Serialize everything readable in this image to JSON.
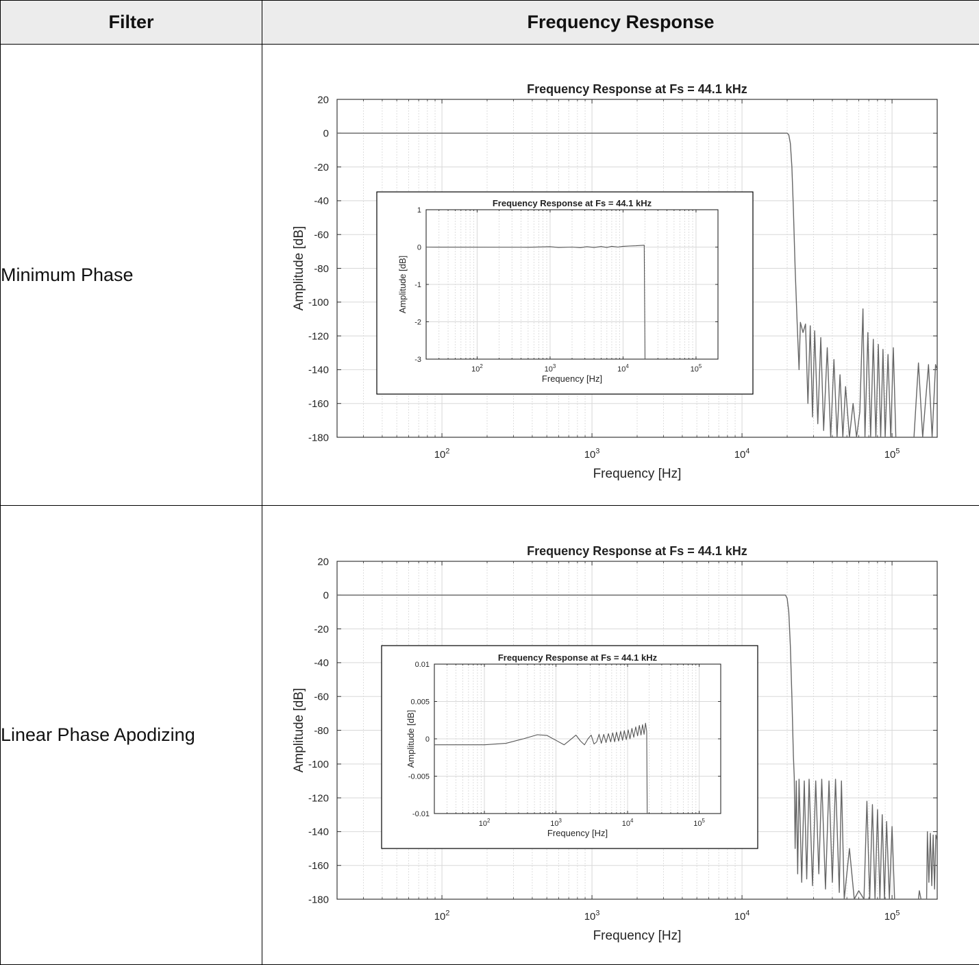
{
  "table": {
    "headers": [
      "Filter",
      "Frequency Response"
    ],
    "rows": [
      {
        "filter": "Minimum Phase"
      },
      {
        "filter": "Linear Phase Apodizing"
      }
    ]
  },
  "chart_data": [
    {
      "type": "line",
      "panel": "Minimum Phase main plot",
      "title": "Frequency Response at Fs = 44.1 kHz",
      "xlabel": "Frequency [Hz]",
      "ylabel": "Amplitude [dB]",
      "xscale": "log",
      "xlim": [
        20,
        200000
      ],
      "ylim": [
        -180,
        20
      ],
      "xticks": [
        100,
        1000,
        10000,
        100000
      ],
      "xtick_labels": [
        {
          "base": "10",
          "exp": "2"
        },
        {
          "base": "10",
          "exp": "3"
        },
        {
          "base": "10",
          "exp": "4"
        },
        {
          "base": "10",
          "exp": "5"
        }
      ],
      "yticks": [
        20,
        0,
        -20,
        -40,
        -60,
        -80,
        -100,
        -120,
        -140,
        -160,
        -180
      ],
      "grid": true,
      "color": "#666666",
      "series": [
        {
          "points": [
            [
              20,
              0
            ],
            [
              20000,
              0
            ],
            [
              20500,
              -1
            ],
            [
              21000,
              -6
            ],
            [
              21500,
              -20
            ],
            [
              22000,
              -45
            ],
            [
              22600,
              -80
            ],
            [
              23300,
              -112
            ],
            [
              24000,
              -140
            ],
            [
              24500,
              -112
            ],
            [
              25500,
              -118
            ],
            [
              26500,
              -113
            ],
            [
              27500,
              -160
            ],
            [
              28500,
              -114
            ],
            [
              29500,
              -168
            ],
            [
              30500,
              -117
            ],
            [
              32000,
              -172
            ],
            [
              33500,
              -121
            ],
            [
              35000,
              -176
            ],
            [
              37000,
              -127
            ],
            [
              39000,
              -180
            ],
            [
              41000,
              -134
            ],
            [
              43000,
              -180
            ],
            [
              45000,
              -143
            ],
            [
              47000,
              -180
            ],
            [
              49000,
              -150
            ],
            [
              52000,
              -180
            ],
            [
              55000,
              -160
            ],
            [
              58000,
              -180
            ],
            [
              61000,
              -165
            ],
            [
              64000,
              -104
            ],
            [
              66000,
              -180
            ],
            [
              69000,
              -118
            ],
            [
              72000,
              -180
            ],
            [
              75000,
              -122
            ],
            [
              78000,
              -180
            ],
            [
              81000,
              -125
            ],
            [
              84000,
              -180
            ],
            [
              87000,
              -128
            ],
            [
              90000,
              -180
            ],
            [
              94000,
              -131
            ],
            [
              98000,
              -180
            ],
            [
              102000,
              -127
            ],
            [
              106000,
              -180
            ],
            [
              140000,
              -180
            ],
            [
              150000,
              -136
            ],
            [
              160000,
              -180
            ],
            [
              175000,
              -137
            ],
            [
              185000,
              -180
            ],
            [
              195000,
              -137
            ],
            [
              200000,
              -140
            ]
          ]
        }
      ]
    },
    {
      "type": "line",
      "panel": "Minimum Phase inset (zoom)",
      "title": "Frequency Response at Fs = 44.1 kHz",
      "xlabel": "Frequency [Hz]",
      "ylabel": "Amplitude [dB]",
      "xscale": "log",
      "xlim": [
        20,
        200000
      ],
      "ylim": [
        -3,
        1
      ],
      "xticks": [
        100,
        1000,
        10000,
        100000
      ],
      "xtick_labels": [
        {
          "base": "10",
          "exp": "2"
        },
        {
          "base": "10",
          "exp": "3"
        },
        {
          "base": "10",
          "exp": "4"
        },
        {
          "base": "10",
          "exp": "5"
        }
      ],
      "yticks": [
        1,
        0,
        -1,
        -2,
        -3
      ],
      "grid": true,
      "color": "#555555",
      "series": [
        {
          "points": [
            [
              20,
              0
            ],
            [
              500,
              -0.005
            ],
            [
              1000,
              0.01
            ],
            [
              1300,
              -0.01
            ],
            [
              2000,
              0.0
            ],
            [
              2600,
              -0.015
            ],
            [
              3200,
              0.01
            ],
            [
              4000,
              -0.01
            ],
            [
              5000,
              0.015
            ],
            [
              6000,
              -0.01
            ],
            [
              7000,
              0.02
            ],
            [
              8500,
              0.0
            ],
            [
              10000,
              0.02
            ],
            [
              12500,
              0.03
            ],
            [
              15000,
              0.035
            ],
            [
              19500,
              0.05
            ],
            [
              20000,
              -3
            ]
          ]
        }
      ]
    },
    {
      "type": "line",
      "panel": "Linear Phase Apodizing main plot",
      "title": "Frequency Response at Fs = 44.1 kHz",
      "xlabel": "Frequency [Hz]",
      "ylabel": "Amplitude [dB]",
      "xscale": "log",
      "xlim": [
        20,
        200000
      ],
      "ylim": [
        -180,
        20
      ],
      "xticks": [
        100,
        1000,
        10000,
        100000
      ],
      "xtick_labels": [
        {
          "base": "10",
          "exp": "2"
        },
        {
          "base": "10",
          "exp": "3"
        },
        {
          "base": "10",
          "exp": "4"
        },
        {
          "base": "10",
          "exp": "5"
        }
      ],
      "yticks": [
        20,
        0,
        -20,
        -40,
        -60,
        -80,
        -100,
        -120,
        -140,
        -160,
        -180
      ],
      "grid": true,
      "color": "#666666",
      "series": [
        {
          "points": [
            [
              20,
              0
            ],
            [
              19500,
              0
            ],
            [
              20000,
              -2
            ],
            [
              20500,
              -10
            ],
            [
              21000,
              -30
            ],
            [
              21500,
              -60
            ],
            [
              22000,
              -95
            ],
            [
              22300,
              -108
            ],
            [
              22600,
              -150
            ],
            [
              23000,
              -110
            ],
            [
              23500,
              -165
            ],
            [
              24000,
              -109
            ],
            [
              25000,
              -170
            ],
            [
              26000,
              -110
            ],
            [
              27000,
              -168
            ],
            [
              28000,
              -109
            ],
            [
              29500,
              -172
            ],
            [
              31000,
              -110
            ],
            [
              32500,
              -165
            ],
            [
              34000,
              -109
            ],
            [
              36000,
              -174
            ],
            [
              38000,
              -110
            ],
            [
              40000,
              -170
            ],
            [
              42000,
              -109
            ],
            [
              44500,
              -176
            ],
            [
              46000,
              -110
            ],
            [
              48000,
              -180
            ],
            [
              52000,
              -150
            ],
            [
              56000,
              -180
            ],
            [
              60000,
              -175
            ],
            [
              65000,
              -180
            ],
            [
              68000,
              -122
            ],
            [
              71000,
              -180
            ],
            [
              74000,
              -124
            ],
            [
              77000,
              -180
            ],
            [
              80000,
              -127
            ],
            [
              83000,
              -180
            ],
            [
              86000,
              -130
            ],
            [
              89000,
              -180
            ],
            [
              92000,
              -134
            ],
            [
              96000,
              -180
            ],
            [
              100000,
              -137
            ],
            [
              104000,
              -180
            ],
            [
              150000,
              -180
            ],
            [
              152000,
              -175
            ],
            [
              156000,
              -180
            ],
            [
              170000,
              -180
            ],
            [
              172000,
              -140
            ],
            [
              176000,
              -170
            ],
            [
              180000,
              -141
            ],
            [
              184000,
              -172
            ],
            [
              188000,
              -142
            ],
            [
              192000,
              -174
            ],
            [
              196000,
              -142
            ],
            [
              200000,
              -145
            ]
          ]
        }
      ]
    },
    {
      "type": "line",
      "panel": "Linear Phase Apodizing inset (zoom)",
      "title": "Frequency Response at Fs = 44.1 kHz",
      "xlabel": "Frequency [Hz]",
      "ylabel": "Amplitude [dB]",
      "xscale": "log",
      "xlim": [
        20,
        200000
      ],
      "ylim": [
        -0.01,
        0.01
      ],
      "xticks": [
        100,
        1000,
        10000,
        100000
      ],
      "xtick_labels": [
        {
          "base": "10",
          "exp": "2"
        },
        {
          "base": "10",
          "exp": "3"
        },
        {
          "base": "10",
          "exp": "4"
        },
        {
          "base": "10",
          "exp": "5"
        }
      ],
      "yticks": [
        0.01,
        0.005,
        0,
        -0.005,
        -0.01
      ],
      "ytick_labels": [
        "0.01",
        "0.005",
        "0",
        "-0.005",
        "-0.01"
      ],
      "grid": true,
      "color": "#555555",
      "series": [
        {
          "points": [
            [
              20,
              -0.0008
            ],
            [
              100,
              -0.0008
            ],
            [
              200,
              -0.0006
            ],
            [
              350,
              0.0
            ],
            [
              550,
              0.00055
            ],
            [
              750,
              0.00045
            ],
            [
              1000,
              -0.0002
            ],
            [
              1300,
              -0.0008
            ],
            [
              1600,
              -0.0001
            ],
            [
              1900,
              0.0005
            ],
            [
              2200,
              -0.0003
            ],
            [
              2500,
              -0.0008
            ],
            [
              2800,
              0.0
            ],
            [
              3100,
              0.0005
            ],
            [
              3400,
              -0.0007
            ],
            [
              3700,
              -0.0004
            ],
            [
              4000,
              0.0006
            ],
            [
              4300,
              -0.0006
            ],
            [
              4650,
              0.0006
            ],
            [
              5000,
              -0.0005
            ],
            [
              5400,
              0.0007
            ],
            [
              5800,
              -0.0004
            ],
            [
              6200,
              0.0008
            ],
            [
              6600,
              -0.0004
            ],
            [
              7000,
              0.0009
            ],
            [
              7500,
              -0.0003
            ],
            [
              8000,
              0.001
            ],
            [
              8500,
              -0.0002
            ],
            [
              9000,
              0.0011
            ],
            [
              9600,
              -0.0001
            ],
            [
              10200,
              0.0012
            ],
            [
              10800,
              0.0
            ],
            [
              11500,
              0.0014
            ],
            [
              12200,
              0.0002
            ],
            [
              13000,
              0.0016
            ],
            [
              13800,
              0.0004
            ],
            [
              14600,
              0.0018
            ],
            [
              15400,
              0.0005
            ],
            [
              16200,
              0.0019
            ],
            [
              17000,
              0.0006
            ],
            [
              17800,
              0.0021
            ],
            [
              18500,
              0.001
            ],
            [
              18800,
              -0.01
            ]
          ]
        }
      ]
    }
  ]
}
